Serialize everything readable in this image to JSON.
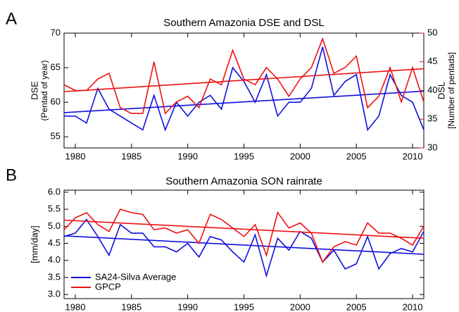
{
  "chart_data": [
    {
      "type": "line",
      "panel_label": "A",
      "title": "Southern Amazonia DSE and DSL",
      "ylabel": [
        "DSE",
        "(Pentad of year)"
      ],
      "y2label": [
        "DSL",
        "[Number of pentads]"
      ],
      "x": [
        1979,
        1980,
        1981,
        1982,
        1983,
        1984,
        1985,
        1986,
        1987,
        1988,
        1989,
        1990,
        1991,
        1992,
        1993,
        1994,
        1995,
        1996,
        1997,
        1998,
        1999,
        2000,
        2001,
        2002,
        2003,
        2004,
        2005,
        2006,
        2007,
        2008,
        2009,
        2010,
        2011
      ],
      "xlim": [
        1979,
        2011
      ],
      "xticks": [
        1980,
        1985,
        1990,
        1995,
        2000,
        2005,
        2010
      ],
      "ylim": [
        53.4,
        70
      ],
      "yticks": [
        55,
        60,
        65,
        70
      ],
      "y2lim": [
        30,
        50
      ],
      "y2ticks": [
        30,
        35,
        40,
        45,
        50
      ],
      "y2color": "#ee1111",
      "series": [
        {
          "color": "#1010e0",
          "values": [
            58,
            58,
            57,
            62,
            59,
            58,
            57,
            56,
            61,
            56,
            60,
            58,
            60,
            61,
            59,
            65,
            63,
            60,
            64,
            58,
            60,
            60,
            62,
            68,
            61,
            63,
            64,
            56,
            58,
            64,
            61,
            60,
            56
          ],
          "trend": [
            58.5,
            61.6
          ]
        },
        {
          "color": "#ee1111",
          "axis": "y2",
          "values": [
            41,
            40,
            40,
            42,
            43,
            37,
            36,
            36,
            45,
            36,
            38,
            39,
            37,
            42,
            41,
            47,
            42,
            41,
            44,
            42,
            39,
            42,
            44,
            49,
            43,
            44,
            46,
            37,
            39,
            44,
            38,
            44,
            38
          ],
          "trend": [
            39.8,
            43.8
          ]
        }
      ]
    },
    {
      "type": "line",
      "panel_label": "B",
      "title": "Southern Amazonia SON rainrate",
      "ylabel": [
        "[mm/day]"
      ],
      "x": [
        1979,
        1980,
        1981,
        1982,
        1983,
        1984,
        1985,
        1986,
        1987,
        1988,
        1989,
        1990,
        1991,
        1992,
        1993,
        1994,
        1995,
        1996,
        1997,
        1998,
        1999,
        2000,
        2001,
        2002,
        2003,
        2004,
        2005,
        2006,
        2007,
        2008,
        2009,
        2010,
        2011
      ],
      "xlim": [
        1979,
        2011
      ],
      "xticks": [
        1980,
        1985,
        1990,
        1995,
        2000,
        2005,
        2010
      ],
      "ylim": [
        2.88,
        6.06
      ],
      "yticks": [
        {
          "value": 3,
          "label": "3.0"
        },
        3.5,
        {
          "value": 4,
          "label": "4.0"
        },
        4.5,
        {
          "value": 5,
          "label": "5.0"
        },
        5.5,
        {
          "value": 6,
          "label": "6.0"
        }
      ],
      "legend": "lower left",
      "series": [
        {
          "name": "SA24-Silva Average",
          "color": "#1010e0",
          "values": [
            4.7,
            4.8,
            5.2,
            4.7,
            4.15,
            5.05,
            4.8,
            4.8,
            4.4,
            4.4,
            4.25,
            4.5,
            4.1,
            4.7,
            4.6,
            4.25,
            3.95,
            4.75,
            3.55,
            4.65,
            4.3,
            4.85,
            4.65,
            3.95,
            4.3,
            3.75,
            3.9,
            4.7,
            3.75,
            4.2,
            4.35,
            4.25,
            4.85
          ],
          "trend": [
            4.72,
            4.18
          ]
        },
        {
          "name": "GPCP",
          "color": "#ee1111",
          "values": [
            4.9,
            5.25,
            5.4,
            5.05,
            4.85,
            5.5,
            5.4,
            5.35,
            4.9,
            4.95,
            4.8,
            4.9,
            4.5,
            5.35,
            5.2,
            4.95,
            4.7,
            5.05,
            4.15,
            5.4,
            4.95,
            5.1,
            4.8,
            3.95,
            4.4,
            4.55,
            4.45,
            5.1,
            4.8,
            4.8,
            4.65,
            4.45,
            5.0
          ],
          "trend": [
            5.18,
            4.65
          ]
        }
      ]
    }
  ]
}
